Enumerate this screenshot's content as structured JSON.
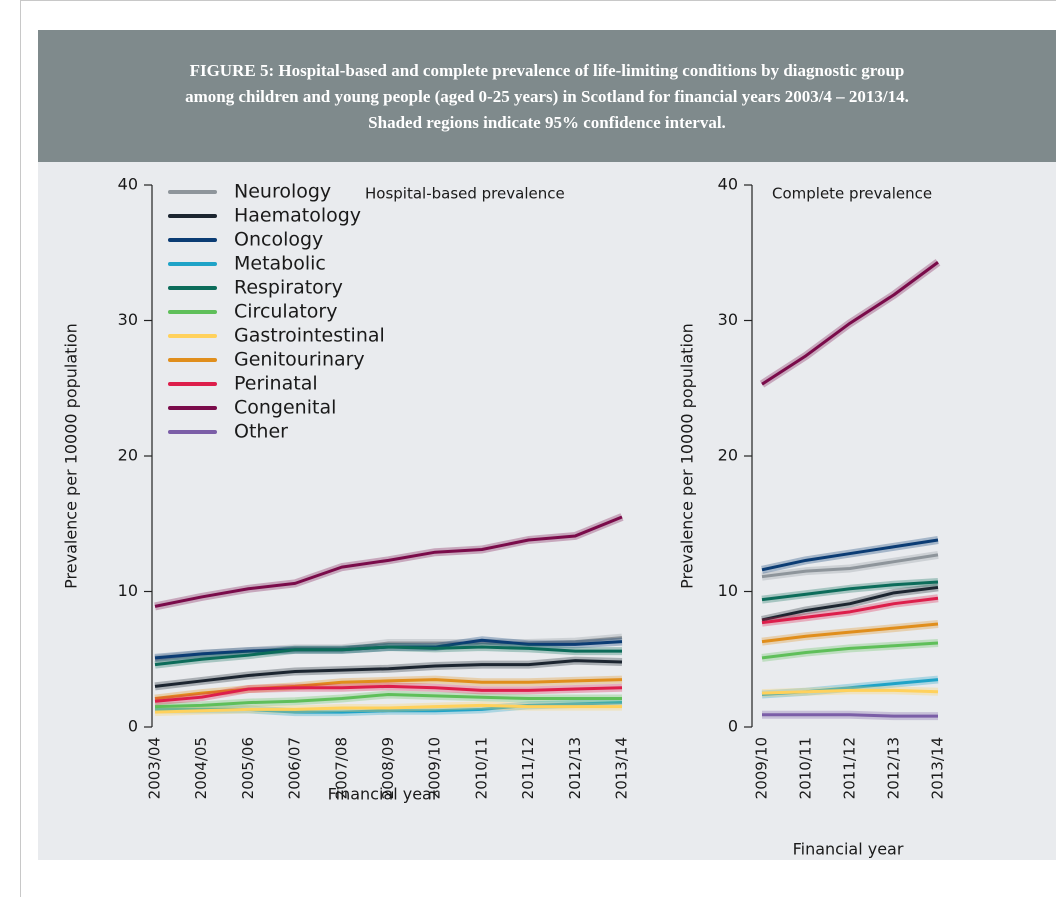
{
  "header": {
    "title": [
      "FIGURE 5: Hospital-based and complete prevalence of life-limiting conditions by diagnostic group",
      "among children and young people (aged 0-25 years) in Scotland for financial years 2003/4 – 2013/14.",
      "Shaded regions indicate 95% confidence interval."
    ]
  },
  "chart_data": [
    {
      "type": "line",
      "title": "Hospital-based prevalence",
      "y_label": "Prevalence per 10000 population",
      "x_label": "Financial year",
      "categories": [
        "2003/04",
        "2004/05",
        "2005/06",
        "2006/07",
        "2007/08",
        "2008/09",
        "2009/10",
        "2010/11",
        "2011/12",
        "2012/13",
        "2013/14"
      ],
      "ylim": [
        0,
        40
      ],
      "yticks": [
        0,
        10,
        20,
        30,
        40
      ],
      "legend": "top-left",
      "series": [
        {
          "name": "Neurology",
          "color": "#8e959b",
          "values": [
            5.0,
            5.4,
            5.6,
            5.8,
            5.8,
            6.2,
            6.2,
            6.2,
            6.2,
            6.3,
            6.6
          ]
        },
        {
          "name": "Haematology",
          "color": "#1c2530",
          "values": [
            3.0,
            3.4,
            3.8,
            4.1,
            4.2,
            4.3,
            4.5,
            4.6,
            4.6,
            4.9,
            4.8
          ]
        },
        {
          "name": "Oncology",
          "color": "#0b3c74",
          "values": [
            5.1,
            5.4,
            5.6,
            5.7,
            5.7,
            5.9,
            5.9,
            6.4,
            6.1,
            6.1,
            6.3
          ]
        },
        {
          "name": "Metabolic",
          "color": "#1fa3c7",
          "values": [
            1.3,
            1.3,
            1.3,
            1.1,
            1.1,
            1.2,
            1.2,
            1.3,
            1.6,
            1.7,
            1.8
          ]
        },
        {
          "name": "Respiratory",
          "color": "#0c6c5a",
          "values": [
            4.6,
            5.0,
            5.3,
            5.7,
            5.7,
            5.9,
            5.8,
            5.9,
            5.8,
            5.6,
            5.6
          ]
        },
        {
          "name": "Circulatory",
          "color": "#5fbf5a",
          "values": [
            1.5,
            1.6,
            1.8,
            1.9,
            2.1,
            2.4,
            2.3,
            2.2,
            2.1,
            2.1,
            2.1
          ]
        },
        {
          "name": "Gastrointestinal",
          "color": "#ffd15c",
          "values": [
            1.1,
            1.2,
            1.3,
            1.3,
            1.4,
            1.4,
            1.5,
            1.6,
            1.5,
            1.5,
            1.5
          ]
        },
        {
          "name": "Genitourinary",
          "color": "#e08e1c",
          "values": [
            2.1,
            2.5,
            2.8,
            3.0,
            3.3,
            3.4,
            3.5,
            3.3,
            3.3,
            3.4,
            3.5
          ]
        },
        {
          "name": "Perinatal",
          "color": "#dd1e4b",
          "values": [
            1.9,
            2.2,
            2.8,
            2.9,
            2.9,
            3.0,
            2.9,
            2.7,
            2.7,
            2.8,
            2.9
          ]
        },
        {
          "name": "Congenital",
          "color": "#7a0b4a",
          "values": [
            8.9,
            9.6,
            10.2,
            10.6,
            11.8,
            12.3,
            12.9,
            13.1,
            13.8,
            14.1,
            15.5
          ]
        },
        {
          "name": "Other",
          "color": "#7b5ea7",
          "values": [
            null,
            null,
            null,
            null,
            null,
            null,
            null,
            null,
            null,
            null,
            null
          ]
        }
      ]
    },
    {
      "type": "line",
      "title": "Complete prevalence",
      "y_label": "Prevalence per 10000 population",
      "x_label": "Financial year",
      "categories": [
        "2009/10",
        "2010/11",
        "2011/12",
        "2012/13",
        "2013/14"
      ],
      "ylim": [
        0,
        40
      ],
      "yticks": [
        0,
        10,
        20,
        30,
        40
      ],
      "series": [
        {
          "color": "#8e959b",
          "values": [
            11.1,
            11.5,
            11.7,
            12.2,
            12.7
          ]
        },
        {
          "color": "#1c2530",
          "values": [
            7.9,
            8.6,
            9.1,
            9.9,
            10.3
          ]
        },
        {
          "color": "#0b3c74",
          "values": [
            11.6,
            12.3,
            12.8,
            13.3,
            13.8
          ]
        },
        {
          "color": "#1fa3c7",
          "values": [
            2.4,
            2.6,
            2.9,
            3.2,
            3.5
          ]
        },
        {
          "color": "#0c6c5a",
          "values": [
            9.4,
            9.8,
            10.2,
            10.5,
            10.7
          ]
        },
        {
          "color": "#5fbf5a",
          "values": [
            5.1,
            5.5,
            5.8,
            6.0,
            6.2
          ]
        },
        {
          "color": "#ffd15c",
          "values": [
            2.5,
            2.6,
            2.7,
            2.7,
            2.6
          ]
        },
        {
          "color": "#e08e1c",
          "values": [
            6.3,
            6.7,
            7.0,
            7.3,
            7.6
          ]
        },
        {
          "color": "#dd1e4b",
          "values": [
            7.7,
            8.1,
            8.5,
            9.1,
            9.5
          ]
        },
        {
          "color": "#7a0b4a",
          "values": [
            25.3,
            27.4,
            29.8,
            31.9,
            34.3
          ]
        },
        {
          "color": "#7b5ea7",
          "values": [
            0.9,
            0.9,
            0.9,
            0.8,
            0.8
          ]
        }
      ]
    }
  ]
}
